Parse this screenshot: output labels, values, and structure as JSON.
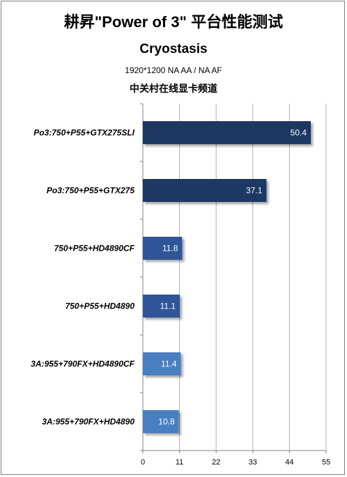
{
  "chart_data": {
    "type": "bar",
    "orientation": "horizontal",
    "title": "耕昇\"Power of 3\" 平台性能测试",
    "subtitle": "Cryostasis",
    "setting": "1920*1200 NA AA / NA AF",
    "source": "中关村在线显卡频道",
    "categories": [
      "Po3:750+P55+GTX275SLI",
      "Po3:750+P55+GTX275",
      "750+P55+HD4890CF",
      "750+P55+HD4890",
      "3A:955+790FX+HD4890CF",
      "3A:955+790FX+HD4890"
    ],
    "values": [
      50.4,
      37.1,
      11.8,
      11.1,
      11.4,
      10.8
    ],
    "value_labels": [
      "50.4",
      "37.1",
      "11.8",
      "11.1",
      "11.4",
      "10.8"
    ],
    "bar_colors": [
      "#1f3864",
      "#1f3864",
      "#2f5597",
      "#2f5597",
      "#4a7fc1",
      "#4a7fc1"
    ],
    "xlim": [
      0,
      55
    ],
    "xticks": [
      0,
      11,
      22,
      33,
      44,
      55
    ],
    "grid": true,
    "legend": "none"
  }
}
